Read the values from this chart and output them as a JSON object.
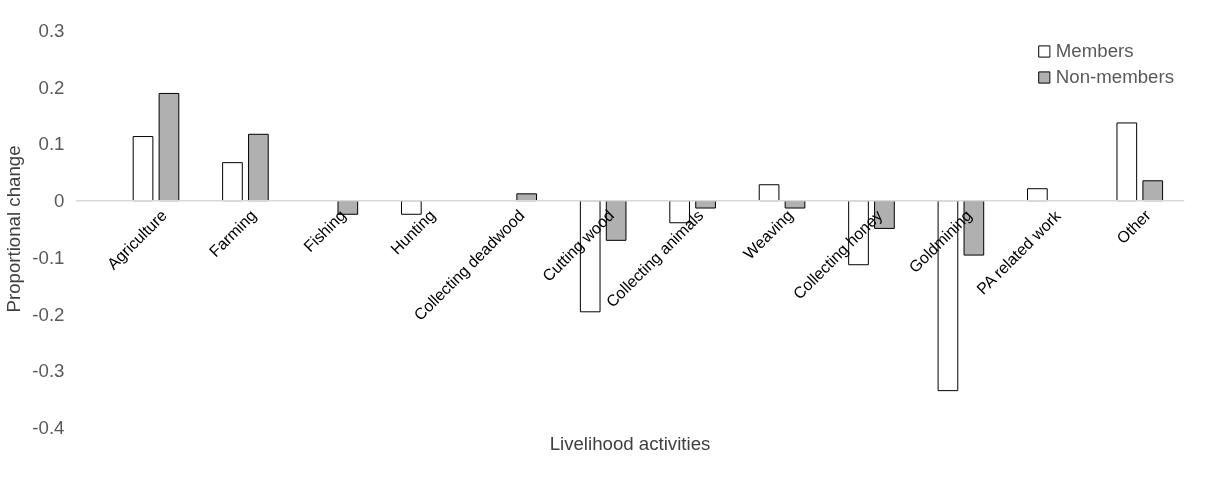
{
  "chart_data": {
    "type": "bar",
    "xlabel": "Livelihood activities",
    "ylabel": "Proportional change",
    "categories": [
      "Agriculture",
      "Farming",
      "Fishing",
      "Hunting",
      "Collecting deadwood",
      "Cutting wood",
      "Collecting animals",
      "Weaving",
      "Collecting honey",
      "Goldmining",
      "PA related work",
      "Other"
    ],
    "series": [
      {
        "name": "Members",
        "color": "#ffffff",
        "values": [
          0.113,
          0.067,
          null,
          -0.024,
          null,
          -0.196,
          -0.039,
          0.028,
          -0.113,
          -0.335,
          0.021,
          0.137
        ]
      },
      {
        "name": "Non-members",
        "color": "#b0b0b0",
        "values": [
          0.189,
          0.117,
          -0.024,
          null,
          0.012,
          -0.07,
          -0.013,
          -0.013,
          -0.049,
          -0.096,
          null,
          0.035
        ]
      }
    ],
    "ylim": [
      -0.4,
      0.3
    ],
    "yticks": [
      -0.4,
      -0.3,
      -0.2,
      -0.1,
      0,
      0.1,
      0.2,
      0.3
    ],
    "grid": false,
    "legend": "top right"
  }
}
